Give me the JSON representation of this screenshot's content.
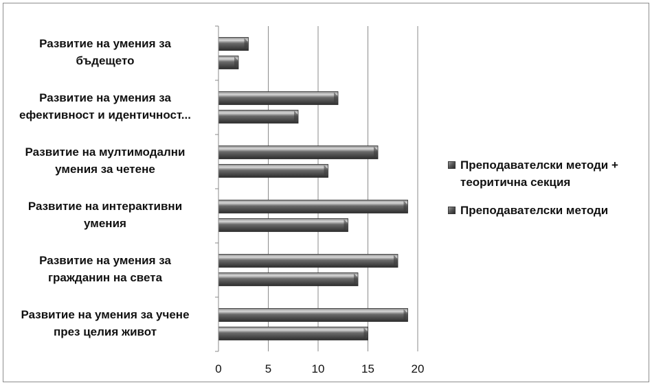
{
  "chart_data": {
    "type": "bar",
    "orientation": "horizontal",
    "categories": [
      [
        "Развитие на умения за",
        "бъдещето"
      ],
      [
        "Развитие на умения за",
        "ефективност и идентичност..."
      ],
      [
        "Развитие на мултимодални",
        "умения за четене"
      ],
      [
        "Развитие на интерактивни",
        "умения"
      ],
      [
        "Развитие на умения за",
        "гражданин на света"
      ],
      [
        "Развитие на умения за учене",
        "през целия живот"
      ]
    ],
    "series": [
      {
        "name": "Преподавателски методи + теоритична секция",
        "values": [
          3,
          12,
          16,
          19,
          18,
          19
        ]
      },
      {
        "name": "Преподавателски методи",
        "values": [
          2,
          8,
          11,
          13,
          14,
          15
        ]
      }
    ],
    "xlim": [
      0,
      20
    ],
    "xticks": [
      0,
      5,
      10,
      15,
      20
    ],
    "grid": true,
    "legend_position": "right",
    "bar_color": "#5a5a5a"
  },
  "legend": {
    "item1_line1": "Преподавателски методи +",
    "item1_line2": "теоритична секция",
    "item2": "Преподавателски методи"
  }
}
